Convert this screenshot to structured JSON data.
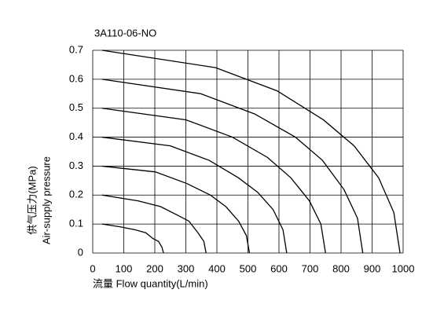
{
  "chart_data": {
    "type": "line",
    "title": "3A110-06-NO",
    "x_label": "流量 Flow quantity(L/min)",
    "y_label": [
      "供气压力(MPa)",
      "Air-supply pressure"
    ],
    "xlim": [
      0,
      1000
    ],
    "xticks": [
      0,
      100,
      200,
      300,
      400,
      500,
      600,
      700,
      800,
      900,
      1000
    ],
    "ylim": [
      0,
      0.7
    ],
    "yticks": [
      0,
      0.1,
      0.2,
      0.3,
      0.4,
      0.5,
      0.6,
      0.7
    ],
    "grid": true,
    "series": [
      {
        "color": "#000000",
        "x": [
          30,
          396,
          594,
          743,
          842,
          921,
          970,
          990
        ],
        "values": [
          0.7,
          0.64,
          0.56,
          0.46,
          0.37,
          0.26,
          0.14,
          0
        ]
      },
      {
        "color": "#000000",
        "x": [
          30,
          348,
          522,
          653,
          740,
          809,
          853,
          870
        ],
        "values": [
          0.6,
          0.55,
          0.48,
          0.4,
          0.32,
          0.22,
          0.12,
          0
        ]
      },
      {
        "color": "#000000",
        "x": [
          30,
          300,
          450,
          563,
          638,
          698,
          735,
          750
        ],
        "values": [
          0.5,
          0.46,
          0.4,
          0.33,
          0.26,
          0.18,
          0.1,
          0
        ]
      },
      {
        "color": "#000000",
        "x": [
          30,
          250,
          375,
          469,
          531,
          581,
          613,
          625
        ],
        "values": [
          0.4,
          0.37,
          0.32,
          0.26,
          0.21,
          0.15,
          0.08,
          0
        ]
      },
      {
        "color": "#000000",
        "x": [
          30,
          202,
          303,
          379,
          429,
          470,
          495,
          505
        ],
        "values": [
          0.3,
          0.28,
          0.24,
          0.2,
          0.16,
          0.11,
          0.06,
          0
        ]
      },
      {
        "color": "#000000",
        "x": [
          30,
          146,
          219,
          274,
          310,
          339,
          358,
          365
        ],
        "values": [
          0.2,
          0.18,
          0.16,
          0.13,
          0.11,
          0.07,
          0.04,
          0
        ]
      },
      {
        "color": "#000000",
        "x": [
          30,
          91,
          137,
          171,
          194,
          212,
          223,
          228
        ],
        "values": [
          0.1,
          0.09,
          0.08,
          0.07,
          0.05,
          0.04,
          0.02,
          0
        ]
      }
    ]
  }
}
